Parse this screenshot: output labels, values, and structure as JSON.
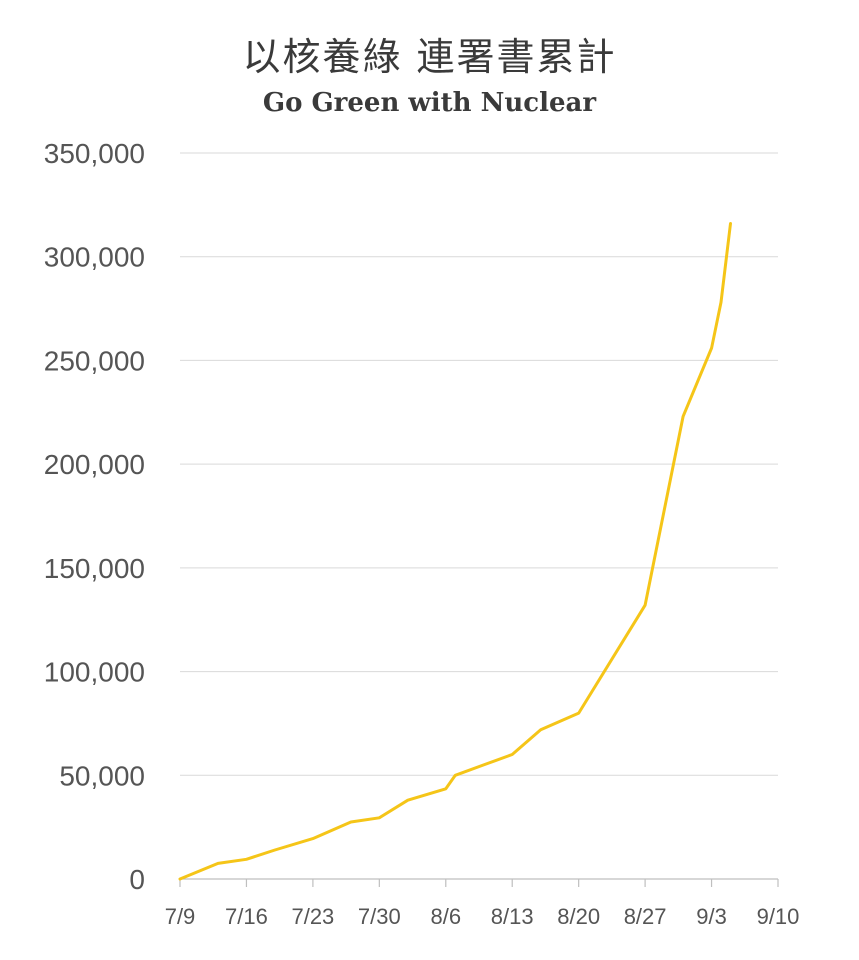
{
  "chart_data": {
    "type": "line",
    "title": "以核養綠 連署書累計",
    "subtitle": "Go Green with Nuclear",
    "xlabel": "",
    "ylabel": "",
    "x_ticks": [
      "7/9",
      "7/16",
      "7/23",
      "7/30",
      "8/6",
      "8/13",
      "8/20",
      "8/27",
      "9/3",
      "9/10"
    ],
    "y_ticks": [
      "0",
      "50,000",
      "100,000",
      "150,000",
      "200,000",
      "250,000",
      "300,000",
      "350,000"
    ],
    "ylim": [
      0,
      350000
    ],
    "xlim": [
      "7/9",
      "9/10"
    ],
    "grid": "horizontal",
    "legend": "none",
    "color": "#F5C518",
    "series": [
      {
        "points": [
          {
            "x": "7/9",
            "y": 0
          },
          {
            "x": "7/13",
            "y": 7500
          },
          {
            "x": "7/16",
            "y": 9500
          },
          {
            "x": "7/19",
            "y": 14000
          },
          {
            "x": "7/23",
            "y": 19500
          },
          {
            "x": "7/27",
            "y": 27500
          },
          {
            "x": "7/30",
            "y": 29500
          },
          {
            "x": "8/2",
            "y": 38000
          },
          {
            "x": "8/6",
            "y": 43500
          },
          {
            "x": "8/7",
            "y": 50000
          },
          {
            "x": "8/10",
            "y": 55000
          },
          {
            "x": "8/13",
            "y": 60000
          },
          {
            "x": "8/16",
            "y": 72000
          },
          {
            "x": "8/20",
            "y": 80000
          },
          {
            "x": "8/27",
            "y": 132000
          },
          {
            "x": "8/31",
            "y": 223000
          },
          {
            "x": "9/3",
            "y": 256000
          },
          {
            "x": "9/4",
            "y": 278000
          },
          {
            "x": "9/5",
            "y": 316000
          }
        ]
      }
    ]
  }
}
